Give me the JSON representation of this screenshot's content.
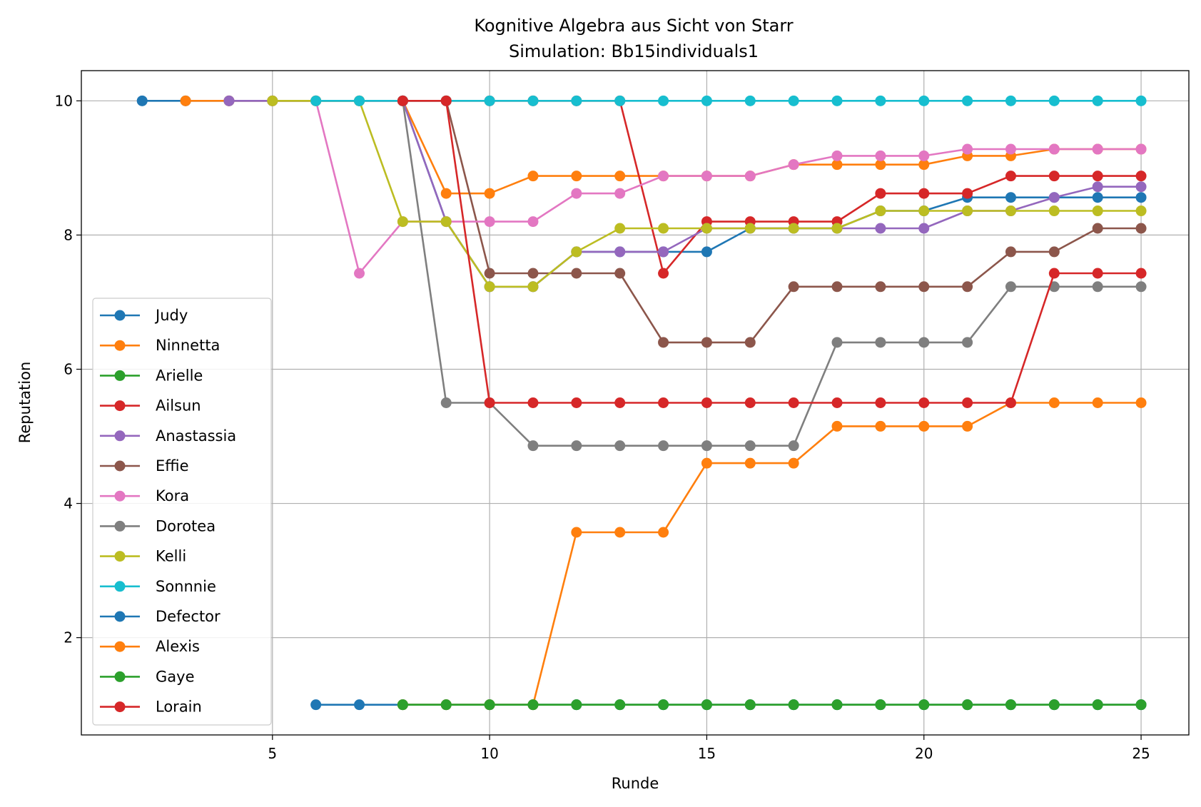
{
  "chart_data": {
    "type": "line",
    "title": "Kognitive Algebra aus Sicht von Starr",
    "subtitle": "Simulation: Bb15individuals1",
    "xlabel": "Runde",
    "ylabel": "Reputation",
    "xlim": [
      0.6,
      26.1
    ],
    "ylim": [
      0.55,
      10.45
    ],
    "xticks": [
      5,
      10,
      15,
      20,
      25
    ],
    "yticks": [
      2,
      4,
      6,
      8,
      10
    ],
    "grid": true,
    "legend_position": "lower-left",
    "series": [
      {
        "name": "Judy",
        "color": "#1f77b4",
        "x": [
          2,
          3,
          4,
          5,
          6,
          7,
          8,
          9,
          10,
          11,
          12,
          13,
          14,
          15,
          16,
          17,
          18,
          19,
          20,
          21,
          22,
          23,
          24,
          25
        ],
        "y": [
          10,
          10,
          10,
          10,
          10,
          10,
          10,
          8.2,
          7.23,
          7.23,
          7.75,
          7.75,
          7.75,
          7.75,
          8.1,
          8.1,
          8.1,
          8.36,
          8.36,
          8.56,
          8.56,
          8.56,
          8.56,
          8.56
        ]
      },
      {
        "name": "Ninnetta",
        "color": "#ff7f0e",
        "x": [
          3,
          4,
          5,
          6,
          7,
          8,
          9,
          10,
          11,
          12,
          13,
          14,
          15,
          16,
          17,
          18,
          19,
          20,
          21,
          22,
          23,
          24,
          25
        ],
        "y": [
          10,
          10,
          10,
          10,
          10,
          10,
          8.62,
          8.62,
          8.88,
          8.88,
          8.88,
          8.88,
          8.88,
          8.88,
          9.05,
          9.05,
          9.05,
          9.05,
          9.18,
          9.18,
          9.28,
          9.28,
          9.28
        ]
      },
      {
        "name": "Arielle",
        "color": "#2ca02c",
        "x": [
          8,
          9,
          10,
          11,
          12,
          13,
          14,
          15,
          16,
          17,
          18,
          19,
          20,
          21,
          22,
          23,
          24,
          25
        ],
        "y": [
          1,
          1,
          1,
          1,
          1,
          1,
          1,
          1,
          1,
          1,
          1,
          1,
          1,
          1,
          1,
          1,
          1,
          1
        ]
      },
      {
        "name": "Ailsun",
        "color": "#d62728",
        "x": [
          8,
          9,
          10,
          11,
          12,
          13,
          14,
          15,
          16,
          17,
          18,
          19,
          20,
          21,
          22,
          23,
          24,
          25
        ],
        "y": [
          10,
          10,
          10,
          10,
          10,
          10,
          7.43,
          8.2,
          8.2,
          8.2,
          8.2,
          8.62,
          8.62,
          8.62,
          8.88,
          8.88,
          8.88,
          8.88
        ]
      },
      {
        "name": "Anastassia",
        "color": "#9467bd",
        "x": [
          4,
          5,
          6,
          7,
          8,
          9,
          10,
          11,
          12,
          13,
          14,
          15,
          16,
          17,
          18,
          19,
          20,
          21,
          22,
          23,
          24,
          25
        ],
        "y": [
          10,
          10,
          10,
          10,
          10,
          8.2,
          7.23,
          7.23,
          7.75,
          7.75,
          7.75,
          8.1,
          8.1,
          8.1,
          8.1,
          8.1,
          8.1,
          8.36,
          8.36,
          8.56,
          8.72,
          8.72
        ]
      },
      {
        "name": "Effie",
        "color": "#8c564b",
        "x": [
          9,
          10,
          11,
          12,
          13,
          14,
          15,
          16,
          17,
          18,
          19,
          20,
          21,
          22,
          23,
          24,
          25
        ],
        "y": [
          10,
          7.43,
          7.43,
          7.43,
          7.43,
          6.4,
          6.4,
          6.4,
          7.23,
          7.23,
          7.23,
          7.23,
          7.23,
          7.75,
          7.75,
          8.1,
          8.1
        ]
      },
      {
        "name": "Kora",
        "color": "#e377c2",
        "x": [
          6,
          7,
          8,
          9,
          10,
          11,
          12,
          13,
          14,
          15,
          16,
          17,
          18,
          19,
          20,
          21,
          22,
          23,
          24,
          25
        ],
        "y": [
          10,
          7.43,
          8.2,
          8.2,
          8.2,
          8.2,
          8.62,
          8.62,
          8.88,
          8.88,
          8.88,
          9.05,
          9.18,
          9.18,
          9.18,
          9.28,
          9.28,
          9.28,
          9.28,
          9.28
        ]
      },
      {
        "name": "Dorotea",
        "color": "#7f7f7f",
        "x": [
          8,
          9,
          10,
          11,
          12,
          13,
          14,
          15,
          16,
          17,
          18,
          19,
          20,
          21,
          22,
          23,
          24,
          25
        ],
        "y": [
          10,
          5.5,
          5.5,
          4.86,
          4.86,
          4.86,
          4.86,
          4.86,
          4.86,
          4.86,
          6.4,
          6.4,
          6.4,
          6.4,
          7.23,
          7.23,
          7.23,
          7.23
        ]
      },
      {
        "name": "Kelli",
        "color": "#bcbd22",
        "x": [
          5,
          6,
          7,
          8,
          9,
          10,
          11,
          12,
          13,
          14,
          15,
          16,
          17,
          18,
          19,
          20,
          21,
          22,
          23,
          24,
          25
        ],
        "y": [
          10,
          10,
          10,
          8.2,
          8.2,
          7.23,
          7.23,
          7.75,
          8.1,
          8.1,
          8.1,
          8.1,
          8.1,
          8.1,
          8.36,
          8.36,
          8.36,
          8.36,
          8.36,
          8.36,
          8.36
        ]
      },
      {
        "name": "Sonnnie",
        "color": "#17becf",
        "x": [
          6,
          7,
          8,
          9,
          10,
          11,
          12,
          13,
          14,
          15,
          16,
          17,
          18,
          19,
          20,
          21,
          22,
          23,
          24,
          25
        ],
        "y": [
          10,
          10,
          10,
          10,
          10,
          10,
          10,
          10,
          10,
          10,
          10,
          10,
          10,
          10,
          10,
          10,
          10,
          10,
          10,
          10
        ]
      },
      {
        "name": "Defector",
        "color": "#1f77b4",
        "x": [
          6,
          7,
          8,
          9,
          10,
          11,
          12,
          13,
          14,
          15,
          16,
          17,
          18,
          19,
          20,
          21,
          22,
          23,
          24,
          25
        ],
        "y": [
          1,
          1,
          1,
          1,
          1,
          1,
          1,
          1,
          1,
          1,
          1,
          1,
          1,
          1,
          1,
          1,
          1,
          1,
          1,
          1
        ]
      },
      {
        "name": "Alexis",
        "color": "#ff7f0e",
        "x": [
          8,
          9,
          10,
          11,
          12,
          13,
          14,
          15,
          16,
          17,
          18,
          19,
          20,
          21,
          22,
          23,
          24,
          25
        ],
        "y": [
          1,
          1,
          1,
          1,
          3.57,
          3.57,
          3.57,
          4.6,
          4.6,
          4.6,
          5.15,
          5.15,
          5.15,
          5.15,
          5.5,
          5.5,
          5.5,
          5.5
        ]
      },
      {
        "name": "Gaye",
        "color": "#2ca02c",
        "x": [
          8,
          9,
          10,
          11,
          12,
          13,
          14,
          15,
          16,
          17,
          18,
          19,
          20,
          21,
          22,
          23,
          24,
          25
        ],
        "y": [
          1,
          1,
          1,
          1,
          1,
          1,
          1,
          1,
          1,
          1,
          1,
          1,
          1,
          1,
          1,
          1,
          1,
          1
        ]
      },
      {
        "name": "Lorain",
        "color": "#d62728",
        "x": [
          8,
          9,
          10,
          11,
          12,
          13,
          14,
          15,
          16,
          17,
          18,
          19,
          20,
          21,
          22,
          23,
          24,
          25
        ],
        "y": [
          10,
          10,
          5.5,
          5.5,
          5.5,
          5.5,
          5.5,
          5.5,
          5.5,
          5.5,
          5.5,
          5.5,
          5.5,
          5.5,
          5.5,
          7.43,
          7.43,
          7.43
        ]
      }
    ]
  }
}
